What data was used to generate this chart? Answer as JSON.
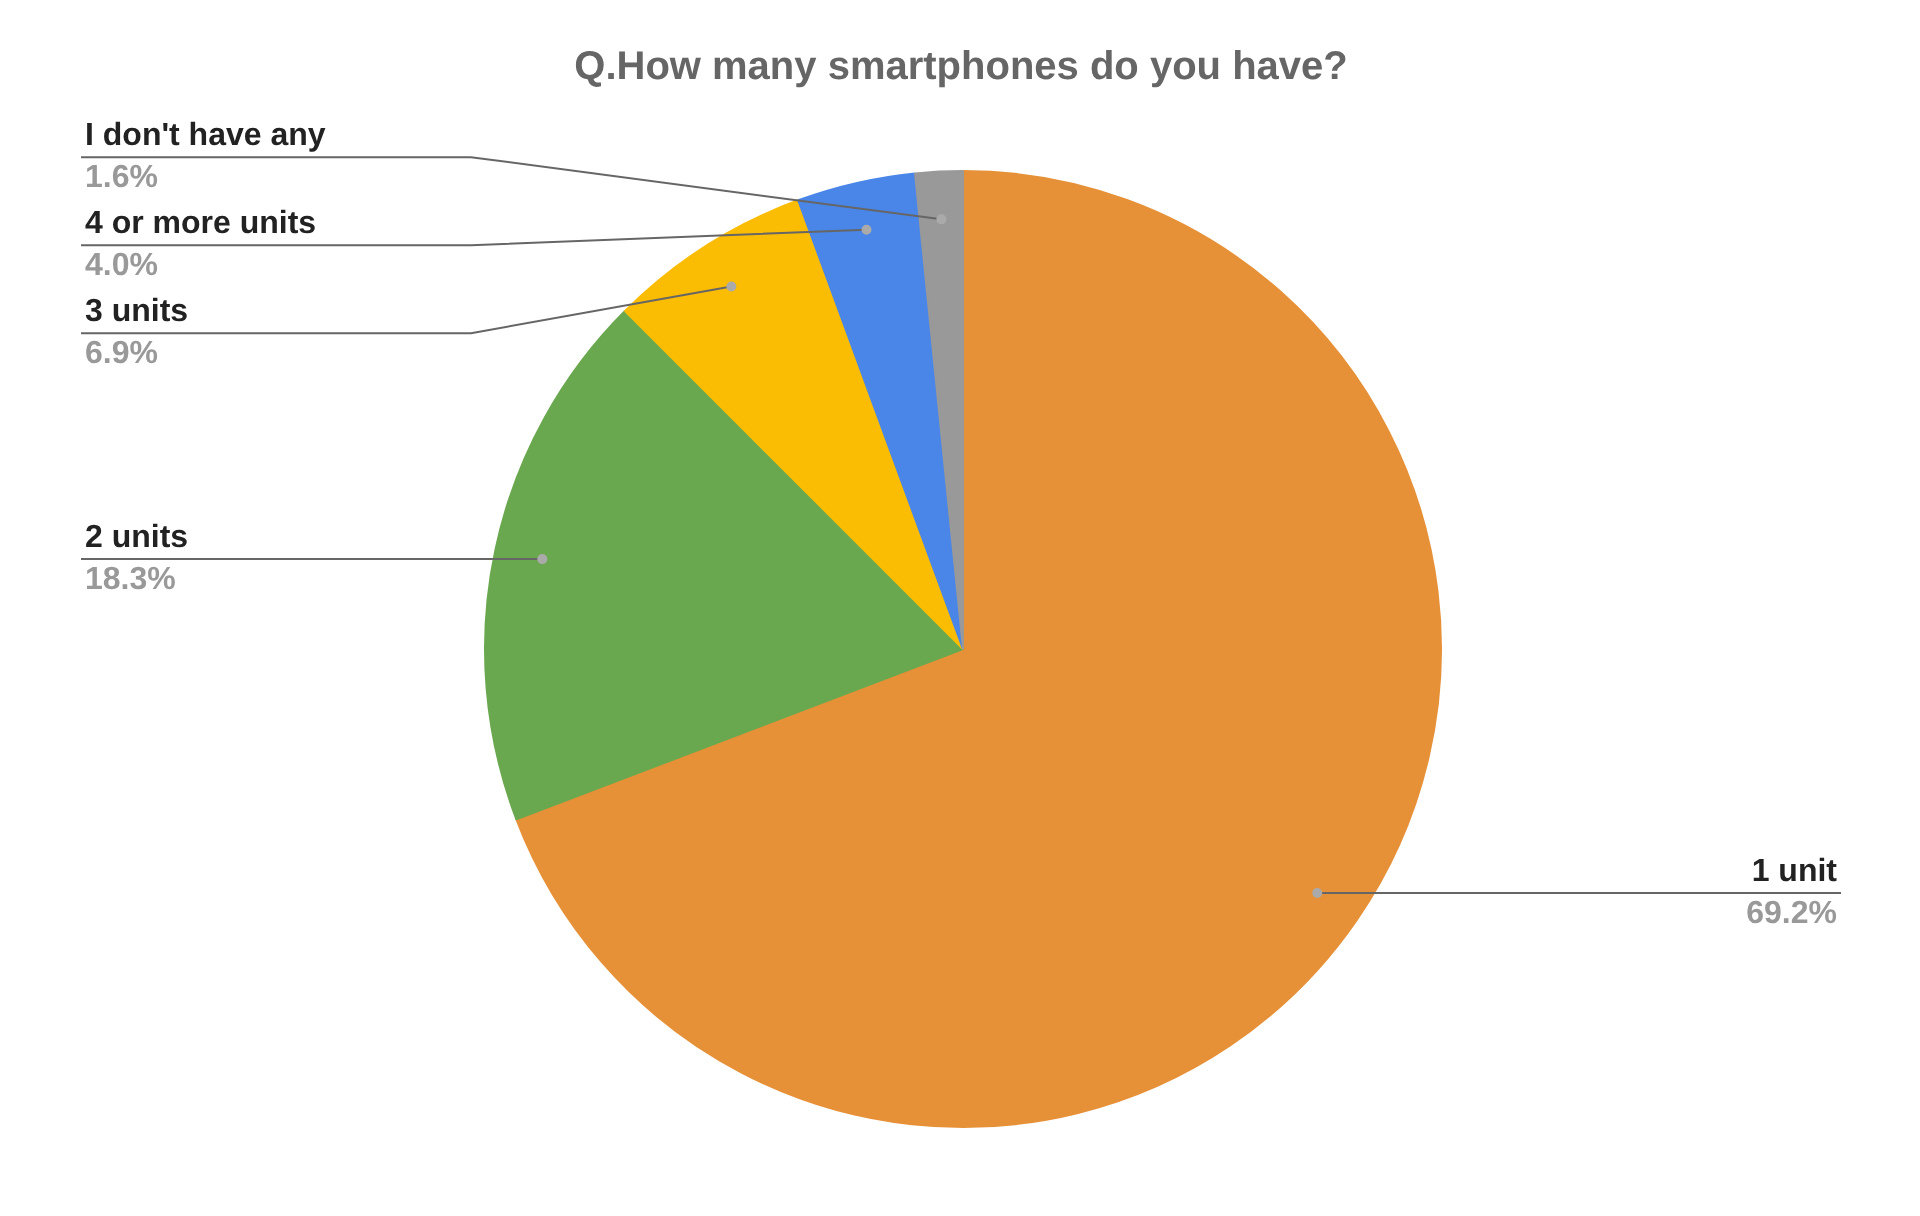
{
  "chart_data": {
    "type": "pie",
    "title": "Q.How many smartphones do you have?",
    "categories": [
      "1 unit",
      "2 units",
      "3 units",
      "4 or more units",
      "I don't have any"
    ],
    "values": [
      69.2,
      18.3,
      6.9,
      4.0,
      1.6
    ],
    "colors": [
      "#e69138",
      "#6aa84f",
      "#fbbc04",
      "#4a86e8",
      "#999999"
    ],
    "value_labels": [
      "69.2%",
      "18.3%",
      "6.9%",
      "4.0%",
      "1.6%"
    ]
  }
}
